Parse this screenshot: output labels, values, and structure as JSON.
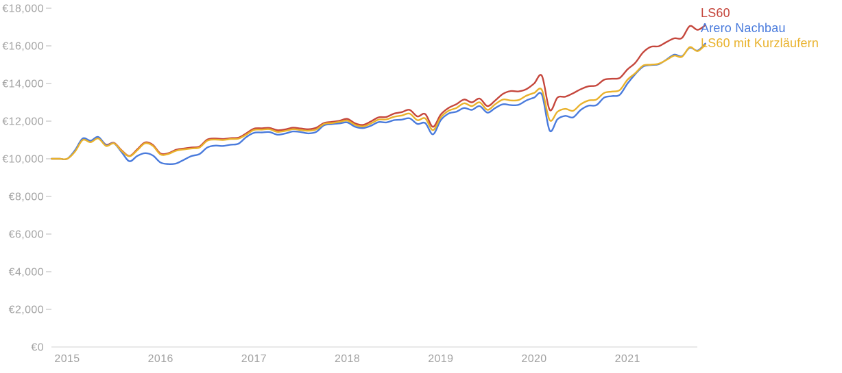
{
  "page": {
    "background": "#ffffff",
    "axis_label_color": "#a3a3a3",
    "axis_line_color": "#e8e8e8",
    "tick_color": "#d3d3d3"
  },
  "chart_data": {
    "type": "line",
    "title": "",
    "currency": "EUR",
    "legend_position": "top-right end-of-line labels",
    "grid": false,
    "y_axis": {
      "min": 0,
      "max": 18000,
      "step": 2000,
      "ticks": [
        {
          "value": 18000,
          "label": "€18,000"
        },
        {
          "value": 16000,
          "label": "€16,000"
        },
        {
          "value": 14000,
          "label": "€14,000"
        },
        {
          "value": 12000,
          "label": "€12,000"
        },
        {
          "value": 10000,
          "label": "€10,000"
        },
        {
          "value": 8000,
          "label": "€8,000"
        },
        {
          "value": 6000,
          "label": "€6,000"
        },
        {
          "value": 4000,
          "label": "€4,000"
        },
        {
          "value": 2000,
          "label": "€2,000"
        },
        {
          "value": 0,
          "label": "€0"
        }
      ]
    },
    "x_axis": {
      "tick_labels": [
        "2015",
        "2016",
        "2017",
        "2018",
        "2019",
        "2020",
        "2021"
      ]
    },
    "months": [
      "2014-11",
      "2014-12",
      "2015-01",
      "2015-02",
      "2015-03",
      "2015-04",
      "2015-05",
      "2015-06",
      "2015-07",
      "2015-08",
      "2015-09",
      "2015-10",
      "2015-11",
      "2015-12",
      "2016-01",
      "2016-02",
      "2016-03",
      "2016-04",
      "2016-05",
      "2016-06",
      "2016-07",
      "2016-08",
      "2016-09",
      "2016-10",
      "2016-11",
      "2016-12",
      "2017-01",
      "2017-02",
      "2017-03",
      "2017-04",
      "2017-05",
      "2017-06",
      "2017-07",
      "2017-08",
      "2017-09",
      "2017-10",
      "2017-11",
      "2017-12",
      "2018-01",
      "2018-02",
      "2018-03",
      "2018-04",
      "2018-05",
      "2018-06",
      "2018-07",
      "2018-08",
      "2018-09",
      "2018-10",
      "2018-11",
      "2018-12",
      "2019-01",
      "2019-02",
      "2019-03",
      "2019-04",
      "2019-05",
      "2019-06",
      "2019-07",
      "2019-08",
      "2019-09",
      "2019-10",
      "2019-11",
      "2019-12",
      "2020-01",
      "2020-02",
      "2020-03",
      "2020-04",
      "2020-05",
      "2020-06",
      "2020-07",
      "2020-08",
      "2020-09",
      "2020-10",
      "2020-11",
      "2020-12",
      "2021-01",
      "2021-02",
      "2021-03",
      "2021-04",
      "2021-05",
      "2021-06",
      "2021-07",
      "2021-08",
      "2021-09",
      "2021-10",
      "2021-11"
    ],
    "series": [
      {
        "id": "ls60",
        "name": "LS60",
        "color": "#c5463c",
        "values": [
          10000,
          10000,
          10000,
          10400,
          11050,
          10920,
          11130,
          10750,
          10850,
          10450,
          10150,
          10500,
          10870,
          10740,
          10280,
          10300,
          10480,
          10550,
          10600,
          10650,
          11020,
          11080,
          11050,
          11100,
          11120,
          11350,
          11600,
          11620,
          11640,
          11520,
          11560,
          11650,
          11610,
          11570,
          11650,
          11900,
          11960,
          12020,
          12120,
          11880,
          11800,
          11980,
          12200,
          12220,
          12400,
          12480,
          12600,
          12250,
          12380,
          11700,
          12350,
          12700,
          12900,
          13150,
          13000,
          13200,
          12800,
          13100,
          13450,
          13600,
          13580,
          13700,
          14000,
          14400,
          12600,
          13250,
          13300,
          13480,
          13700,
          13850,
          13900,
          14200,
          14250,
          14300,
          14750,
          15100,
          15650,
          15950,
          15980,
          16200,
          16400,
          16420,
          17050,
          16850,
          17100
        ]
      },
      {
        "id": "arero-nachbau",
        "name": "Arero Nachbau",
        "color": "#4a7bdc",
        "values": [
          10000,
          10000,
          10000,
          10450,
          11080,
          10960,
          11160,
          10720,
          10820,
          10350,
          9870,
          10150,
          10300,
          10180,
          9800,
          9720,
          9750,
          9950,
          10150,
          10250,
          10600,
          10700,
          10680,
          10750,
          10800,
          11150,
          11380,
          11400,
          11420,
          11280,
          11340,
          11450,
          11420,
          11350,
          11430,
          11780,
          11840,
          11880,
          11930,
          11700,
          11630,
          11750,
          11950,
          11930,
          12050,
          12080,
          12150,
          11850,
          11900,
          11300,
          12050,
          12400,
          12500,
          12700,
          12600,
          12800,
          12450,
          12700,
          12900,
          12850,
          12870,
          13100,
          13250,
          13400,
          11500,
          12100,
          12280,
          12200,
          12600,
          12820,
          12850,
          13250,
          13330,
          13400,
          14000,
          14500,
          14900,
          14980,
          15020,
          15270,
          15530,
          15450,
          15900,
          15750,
          16120
        ]
      },
      {
        "id": "ls60-mit-kurzlaeufern",
        "name": "LS60 mit Kurzläufern",
        "color": "#e9b22c",
        "values": [
          10000,
          10000,
          10000,
          10380,
          11000,
          10880,
          11080,
          10680,
          10820,
          10420,
          10130,
          10450,
          10820,
          10690,
          10230,
          10260,
          10430,
          10500,
          10550,
          10600,
          10960,
          11020,
          11000,
          11050,
          11070,
          11280,
          11530,
          11550,
          11570,
          11430,
          11480,
          11570,
          11530,
          11490,
          11560,
          11850,
          11900,
          11960,
          12030,
          11800,
          11720,
          11870,
          12080,
          12090,
          12230,
          12300,
          12400,
          12050,
          12150,
          11520,
          12200,
          12550,
          12700,
          12950,
          12800,
          13000,
          12600,
          12900,
          13150,
          13100,
          13120,
          13350,
          13500,
          13650,
          12050,
          12500,
          12650,
          12550,
          12900,
          13100,
          13150,
          13500,
          13570,
          13650,
          14200,
          14550,
          14950,
          15000,
          15050,
          15250,
          15480,
          15420,
          15930,
          15720,
          16060
        ]
      }
    ]
  }
}
